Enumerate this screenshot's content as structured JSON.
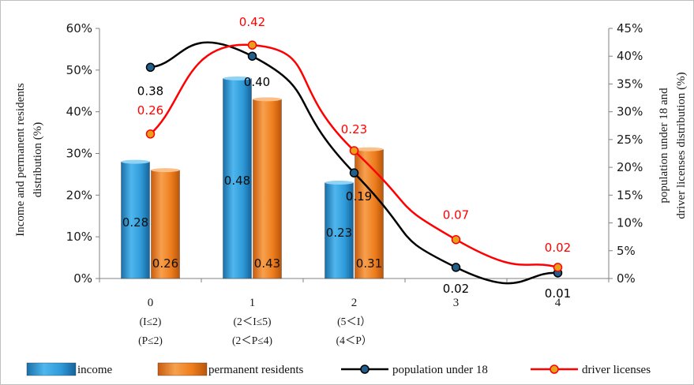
{
  "chart_data": {
    "type": "bar",
    "categories": [
      "0",
      "1",
      "2",
      "3",
      "4"
    ],
    "category_sublabels": [
      [
        "(I≤2)",
        "(P≤2)"
      ],
      [
        "(2＜I≤5)",
        "(2＜P≤4)"
      ],
      [
        "(5＜I）",
        "(4＜P）"
      ],
      [],
      []
    ],
    "y_left": {
      "label_lines": [
        "Income and permanent residents",
        "distribution (%)"
      ],
      "ylim": [
        0,
        0.6
      ],
      "ticks": [
        0,
        0.1,
        0.2,
        0.3,
        0.4,
        0.5,
        0.6
      ],
      "tick_labels": [
        "0%",
        "10%",
        "20%",
        "30%",
        "40%",
        "50%",
        "60%"
      ]
    },
    "y_right": {
      "label_lines": [
        "population under 18 and",
        "driver licenses distribution (%)"
      ],
      "ylim": [
        0,
        0.45
      ],
      "ticks": [
        0,
        0.05,
        0.1,
        0.15,
        0.2,
        0.25,
        0.3,
        0.35,
        0.4,
        0.45
      ],
      "tick_labels": [
        "0%",
        "5%",
        "10%",
        "15%",
        "20%",
        "25%",
        "30%",
        "35%",
        "40%",
        "45%"
      ]
    },
    "bar_series": [
      {
        "name": "income",
        "axis": "left",
        "values": [
          0.28,
          0.48,
          0.23,
          null,
          null
        ],
        "labels": [
          "0.28",
          "0.48",
          "0.23",
          "",
          ""
        ],
        "color": "#2e9bd6"
      },
      {
        "name": "permanent residents",
        "axis": "left",
        "values": [
          0.26,
          0.43,
          0.31,
          null,
          null
        ],
        "labels": [
          "0.26",
          "0.43",
          "0.31",
          "",
          ""
        ],
        "color": "#f07f1f"
      }
    ],
    "line_series": [
      {
        "name": "population under 18",
        "axis": "right",
        "values": [
          0.38,
          0.4,
          0.19,
          0.02,
          0.01
        ],
        "labels": [
          "0.38",
          "0.40",
          "0.19",
          "0.02",
          "0.01"
        ],
        "color": "#000000",
        "marker_fill": "#1f5f8b",
        "label_color": "#000000"
      },
      {
        "name": "driver licenses",
        "axis": "right",
        "values": [
          0.26,
          0.42,
          0.23,
          0.07,
          0.02
        ],
        "labels": [
          "0.26",
          "0.42",
          "0.23",
          "0.07",
          "0.02"
        ],
        "color": "#ff0000",
        "marker_fill": "#e8a01c",
        "label_color": "#ff0000"
      }
    ],
    "legend": {
      "placement": "bottom",
      "items": [
        "income",
        "permanent residents",
        "population under 18",
        "driver licenses"
      ]
    },
    "grid": false
  }
}
